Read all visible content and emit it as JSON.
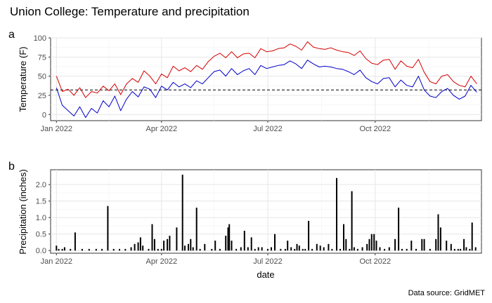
{
  "figure": {
    "title": "Union College: Temperature and precipitation",
    "caption": "Data source: GridMET"
  },
  "chart_data": [
    {
      "panel": "a",
      "type": "line",
      "ylabel": "Temperature (F)",
      "xlabel": "",
      "x_ticks": [
        "Jan 2022",
        "Apr 2022",
        "Jul 2022",
        "Oct 2022"
      ],
      "y_ticks": [
        "0",
        "25",
        "50",
        "75",
        "100"
      ],
      "xlim": [
        "2021-12-27",
        "2022-12-31"
      ],
      "ylim": [
        -8,
        100
      ],
      "grid": true,
      "legend": "none",
      "reference_line": {
        "y": 32,
        "style": "dashed",
        "color": "#000000"
      },
      "series": [
        {
          "color": "#d40000",
          "points": [
            [
              "2022-01-01",
              50
            ],
            [
              "2022-01-06",
              30
            ],
            [
              "2022-01-11",
              33
            ],
            [
              "2022-01-16",
              25
            ],
            [
              "2022-01-21",
              35
            ],
            [
              "2022-01-26",
              22
            ],
            [
              "2022-01-31",
              30
            ],
            [
              "2022-02-05",
              28
            ],
            [
              "2022-02-10",
              37
            ],
            [
              "2022-02-15",
              31
            ],
            [
              "2022-02-20",
              40
            ],
            [
              "2022-02-25",
              26
            ],
            [
              "2022-03-02",
              40
            ],
            [
              "2022-03-07",
              47
            ],
            [
              "2022-03-12",
              42
            ],
            [
              "2022-03-17",
              57
            ],
            [
              "2022-03-22",
              50
            ],
            [
              "2022-03-27",
              40
            ],
            [
              "2022-04-01",
              53
            ],
            [
              "2022-04-06",
              48
            ],
            [
              "2022-04-11",
              63
            ],
            [
              "2022-04-16",
              57
            ],
            [
              "2022-04-21",
              61
            ],
            [
              "2022-04-26",
              56
            ],
            [
              "2022-05-01",
              64
            ],
            [
              "2022-05-06",
              59
            ],
            [
              "2022-05-11",
              69
            ],
            [
              "2022-05-16",
              76
            ],
            [
              "2022-05-21",
              80
            ],
            [
              "2022-05-26",
              74
            ],
            [
              "2022-05-31",
              82
            ],
            [
              "2022-06-05",
              74
            ],
            [
              "2022-06-10",
              79
            ],
            [
              "2022-06-15",
              80
            ],
            [
              "2022-06-20",
              74
            ],
            [
              "2022-06-25",
              86
            ],
            [
              "2022-06-30",
              82
            ],
            [
              "2022-07-05",
              83
            ],
            [
              "2022-07-10",
              86
            ],
            [
              "2022-07-15",
              87
            ],
            [
              "2022-07-20",
              92
            ],
            [
              "2022-07-25",
              89
            ],
            [
              "2022-07-30",
              84
            ],
            [
              "2022-08-04",
              95
            ],
            [
              "2022-08-09",
              88
            ],
            [
              "2022-08-14",
              86
            ],
            [
              "2022-08-19",
              85
            ],
            [
              "2022-08-24",
              87
            ],
            [
              "2022-08-29",
              84
            ],
            [
              "2022-09-03",
              82
            ],
            [
              "2022-09-08",
              81
            ],
            [
              "2022-09-13",
              77
            ],
            [
              "2022-09-18",
              83
            ],
            [
              "2022-09-23",
              73
            ],
            [
              "2022-09-28",
              67
            ],
            [
              "2022-10-03",
              65
            ],
            [
              "2022-10-08",
              71
            ],
            [
              "2022-10-13",
              72
            ],
            [
              "2022-10-18",
              59
            ],
            [
              "2022-10-23",
              70
            ],
            [
              "2022-10-28",
              63
            ],
            [
              "2022-11-02",
              61
            ],
            [
              "2022-11-07",
              72
            ],
            [
              "2022-11-12",
              55
            ],
            [
              "2022-11-17",
              43
            ],
            [
              "2022-11-22",
              40
            ],
            [
              "2022-11-27",
              50
            ],
            [
              "2022-12-02",
              52
            ],
            [
              "2022-12-07",
              43
            ],
            [
              "2022-12-12",
              38
            ],
            [
              "2022-12-17",
              36
            ],
            [
              "2022-12-22",
              50
            ],
            [
              "2022-12-27",
              40
            ]
          ]
        },
        {
          "color": "#0000c8",
          "points": [
            [
              "2022-01-01",
              35
            ],
            [
              "2022-01-06",
              12
            ],
            [
              "2022-01-11",
              5
            ],
            [
              "2022-01-16",
              -2
            ],
            [
              "2022-01-21",
              10
            ],
            [
              "2022-01-26",
              -4
            ],
            [
              "2022-01-31",
              8
            ],
            [
              "2022-02-05",
              2
            ],
            [
              "2022-02-10",
              18
            ],
            [
              "2022-02-15",
              10
            ],
            [
              "2022-02-20",
              24
            ],
            [
              "2022-02-25",
              5
            ],
            [
              "2022-03-02",
              20
            ],
            [
              "2022-03-07",
              30
            ],
            [
              "2022-03-12",
              23
            ],
            [
              "2022-03-17",
              36
            ],
            [
              "2022-03-22",
              33
            ],
            [
              "2022-03-27",
              22
            ],
            [
              "2022-04-01",
              37
            ],
            [
              "2022-04-06",
              32
            ],
            [
              "2022-04-11",
              42
            ],
            [
              "2022-04-16",
              36
            ],
            [
              "2022-04-21",
              40
            ],
            [
              "2022-04-26",
              35
            ],
            [
              "2022-05-01",
              44
            ],
            [
              "2022-05-06",
              40
            ],
            [
              "2022-05-11",
              48
            ],
            [
              "2022-05-16",
              56
            ],
            [
              "2022-05-21",
              58
            ],
            [
              "2022-05-26",
              50
            ],
            [
              "2022-05-31",
              60
            ],
            [
              "2022-06-05",
              52
            ],
            [
              "2022-06-10",
              57
            ],
            [
              "2022-06-15",
              60
            ],
            [
              "2022-06-20",
              52
            ],
            [
              "2022-06-25",
              64
            ],
            [
              "2022-06-30",
              60
            ],
            [
              "2022-07-05",
              62
            ],
            [
              "2022-07-10",
              64
            ],
            [
              "2022-07-15",
              65
            ],
            [
              "2022-07-20",
              70
            ],
            [
              "2022-07-25",
              66
            ],
            [
              "2022-07-30",
              60
            ],
            [
              "2022-08-04",
              71
            ],
            [
              "2022-08-09",
              66
            ],
            [
              "2022-08-14",
              62
            ],
            [
              "2022-08-19",
              63
            ],
            [
              "2022-08-24",
              62
            ],
            [
              "2022-08-29",
              60
            ],
            [
              "2022-09-03",
              59
            ],
            [
              "2022-09-08",
              56
            ],
            [
              "2022-09-13",
              52
            ],
            [
              "2022-09-18",
              58
            ],
            [
              "2022-09-23",
              48
            ],
            [
              "2022-09-28",
              43
            ],
            [
              "2022-10-03",
              40
            ],
            [
              "2022-10-08",
              47
            ],
            [
              "2022-10-13",
              48
            ],
            [
              "2022-10-18",
              36
            ],
            [
              "2022-10-23",
              45
            ],
            [
              "2022-10-28",
              38
            ],
            [
              "2022-11-02",
              36
            ],
            [
              "2022-11-07",
              50
            ],
            [
              "2022-11-12",
              32
            ],
            [
              "2022-11-17",
              24
            ],
            [
              "2022-11-22",
              22
            ],
            [
              "2022-11-27",
              30
            ],
            [
              "2022-12-02",
              34
            ],
            [
              "2022-12-07",
              25
            ],
            [
              "2022-12-12",
              20
            ],
            [
              "2022-12-17",
              24
            ],
            [
              "2022-12-22",
              38
            ],
            [
              "2022-12-27",
              29
            ]
          ]
        }
      ]
    },
    {
      "panel": "b",
      "type": "bar",
      "ylabel": "Precipitation (inches)",
      "xlabel": "date",
      "x_ticks": [
        "Jan 2022",
        "Apr 2022",
        "Jul 2022",
        "Oct 2022"
      ],
      "y_ticks": [
        "0.0",
        "0.5",
        "1.0",
        "1.5",
        "2.0"
      ],
      "xlim": [
        "2021-12-27",
        "2022-12-31"
      ],
      "ylim": [
        -0.08,
        2.45
      ],
      "grid": true,
      "legend": "none",
      "bar_color": "#000000",
      "points": [
        [
          "2022-01-01",
          0.15
        ],
        [
          "2022-01-03",
          0.05
        ],
        [
          "2022-01-06",
          0.05
        ],
        [
          "2022-01-08",
          0.1
        ],
        [
          "2022-01-13",
          0.05
        ],
        [
          "2022-01-17",
          0.55
        ],
        [
          "2022-01-23",
          0.05
        ],
        [
          "2022-01-29",
          0.05
        ],
        [
          "2022-02-04",
          0.05
        ],
        [
          "2022-02-09",
          0.05
        ],
        [
          "2022-02-14",
          1.35
        ],
        [
          "2022-02-19",
          0.05
        ],
        [
          "2022-02-24",
          0.05
        ],
        [
          "2022-03-01",
          0.05
        ],
        [
          "2022-03-06",
          0.1
        ],
        [
          "2022-03-09",
          0.2
        ],
        [
          "2022-03-12",
          0.25
        ],
        [
          "2022-03-14",
          0.4
        ],
        [
          "2022-03-16",
          0.15
        ],
        [
          "2022-03-21",
          0.05
        ],
        [
          "2022-03-24",
          0.8
        ],
        [
          "2022-03-26",
          0.35
        ],
        [
          "2022-03-29",
          0.05
        ],
        [
          "2022-04-01",
          0.05
        ],
        [
          "2022-04-03",
          0.3
        ],
        [
          "2022-04-06",
          0.35
        ],
        [
          "2022-04-08",
          0.45
        ],
        [
          "2022-04-14",
          0.7
        ],
        [
          "2022-04-19",
          2.3
        ],
        [
          "2022-04-21",
          0.15
        ],
        [
          "2022-04-24",
          0.2
        ],
        [
          "2022-04-26",
          0.35
        ],
        [
          "2022-04-28",
          0.1
        ],
        [
          "2022-05-01",
          1.3
        ],
        [
          "2022-05-04",
          0.05
        ],
        [
          "2022-05-08",
          0.2
        ],
        [
          "2022-05-14",
          0.05
        ],
        [
          "2022-05-17",
          0.3
        ],
        [
          "2022-05-21",
          0.05
        ],
        [
          "2022-05-26",
          0.45
        ],
        [
          "2022-05-28",
          0.7
        ],
        [
          "2022-05-29",
          0.8
        ],
        [
          "2022-05-31",
          0.3
        ],
        [
          "2022-06-04",
          0.05
        ],
        [
          "2022-06-08",
          0.1
        ],
        [
          "2022-06-11",
          0.6
        ],
        [
          "2022-06-14",
          0.1
        ],
        [
          "2022-06-17",
          0.4
        ],
        [
          "2022-06-20",
          0.05
        ],
        [
          "2022-06-23",
          0.1
        ],
        [
          "2022-06-26",
          0.1
        ],
        [
          "2022-07-01",
          0.05
        ],
        [
          "2022-07-04",
          0.1
        ],
        [
          "2022-07-07",
          0.5
        ],
        [
          "2022-07-12",
          0.05
        ],
        [
          "2022-07-16",
          0.05
        ],
        [
          "2022-07-18",
          0.3
        ],
        [
          "2022-07-21",
          0.1
        ],
        [
          "2022-07-24",
          0.05
        ],
        [
          "2022-07-26",
          0.2
        ],
        [
          "2022-07-28",
          0.15
        ],
        [
          "2022-07-31",
          0.05
        ],
        [
          "2022-08-02",
          0.05
        ],
        [
          "2022-08-05",
          0.9
        ],
        [
          "2022-08-08",
          0.05
        ],
        [
          "2022-08-12",
          0.2
        ],
        [
          "2022-08-15",
          0.15
        ],
        [
          "2022-08-18",
          0.1
        ],
        [
          "2022-08-22",
          0.2
        ],
        [
          "2022-08-25",
          0.05
        ],
        [
          "2022-08-29",
          2.2
        ],
        [
          "2022-09-01",
          0.05
        ],
        [
          "2022-09-04",
          0.8
        ],
        [
          "2022-09-06",
          0.35
        ],
        [
          "2022-09-09",
          0.05
        ],
        [
          "2022-09-11",
          1.8
        ],
        [
          "2022-09-13",
          0.1
        ],
        [
          "2022-09-16",
          0.05
        ],
        [
          "2022-09-20",
          0.1
        ],
        [
          "2022-09-24",
          0.2
        ],
        [
          "2022-09-26",
          0.35
        ],
        [
          "2022-09-28",
          0.5
        ],
        [
          "2022-09-30",
          0.5
        ],
        [
          "2022-10-02",
          0.3
        ],
        [
          "2022-10-05",
          0.1
        ],
        [
          "2022-10-09",
          0.05
        ],
        [
          "2022-10-13",
          0.1
        ],
        [
          "2022-10-18",
          0.35
        ],
        [
          "2022-10-21",
          1.3
        ],
        [
          "2022-10-24",
          0.05
        ],
        [
          "2022-10-28",
          0.05
        ],
        [
          "2022-11-01",
          0.3
        ],
        [
          "2022-11-05",
          0.05
        ],
        [
          "2022-11-10",
          0.35
        ],
        [
          "2022-11-12",
          0.35
        ],
        [
          "2022-11-17",
          0.05
        ],
        [
          "2022-11-22",
          0.35
        ],
        [
          "2022-11-24",
          1.1
        ],
        [
          "2022-11-26",
          0.7
        ],
        [
          "2022-12-01",
          0.3
        ],
        [
          "2022-12-05",
          0.2
        ],
        [
          "2022-12-08",
          0.05
        ],
        [
          "2022-12-11",
          0.05
        ],
        [
          "2022-12-13",
          0.05
        ],
        [
          "2022-12-16",
          0.35
        ],
        [
          "2022-12-18",
          0.1
        ],
        [
          "2022-12-21",
          0.05
        ],
        [
          "2022-12-23",
          0.85
        ],
        [
          "2022-12-26",
          0.1
        ]
      ]
    }
  ]
}
